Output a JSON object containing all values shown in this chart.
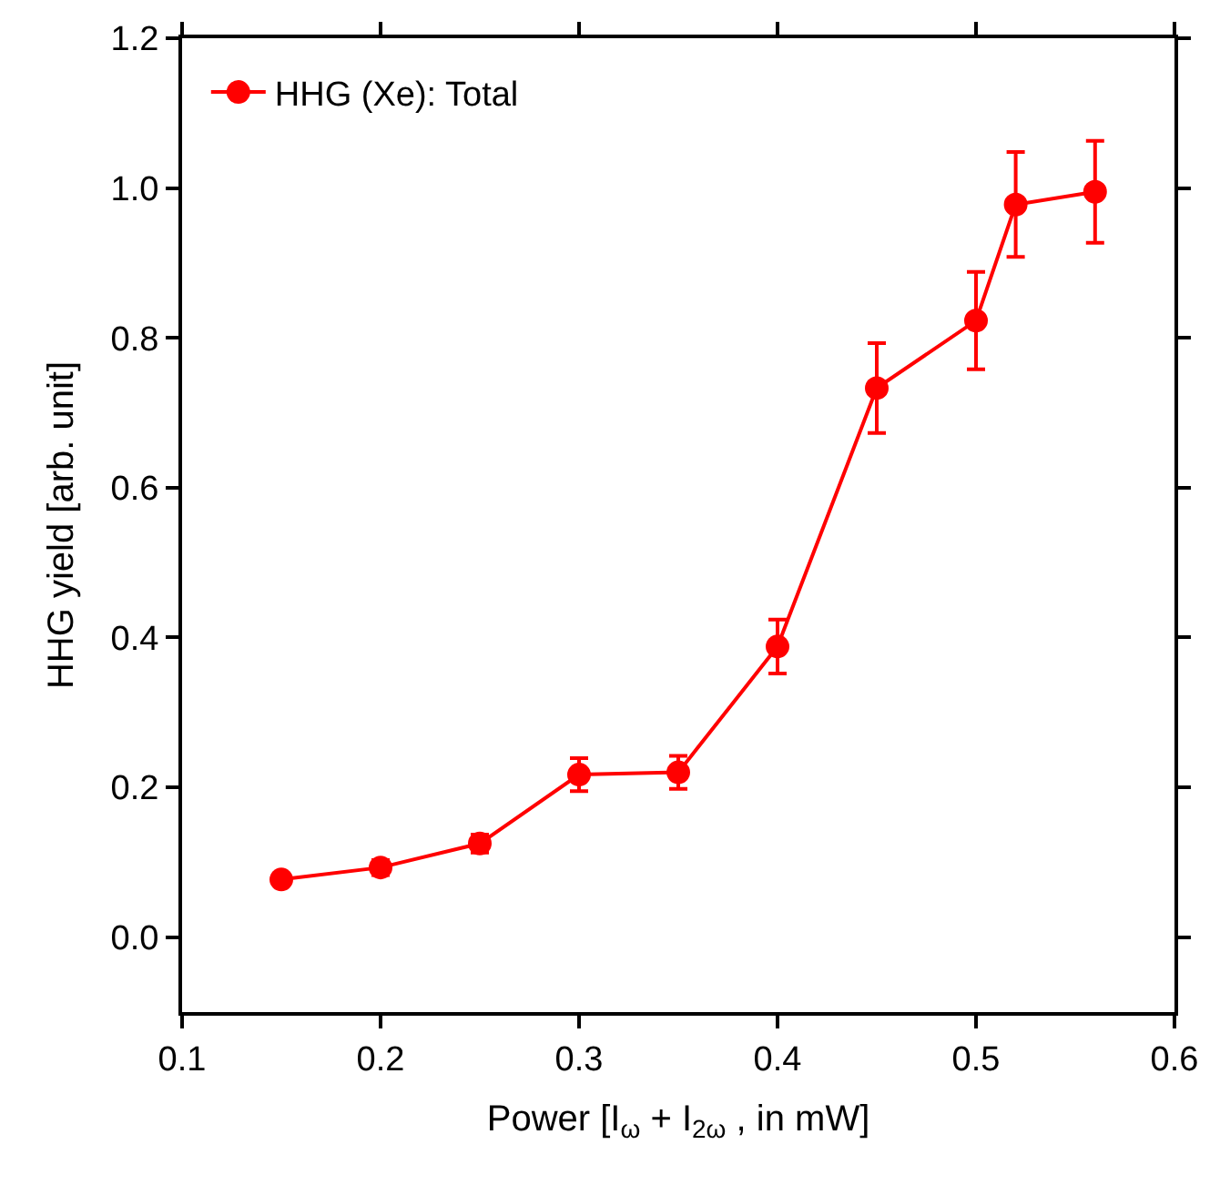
{
  "chart_data": {
    "type": "line",
    "xlabel": "Power [I$_{ω}$ + I$_{2ω}$ , in mW]",
    "ylabel": "HHG yield [arb. unit]",
    "x": [
      0.15,
      0.2,
      0.25,
      0.3,
      0.35,
      0.4,
      0.45,
      0.5,
      0.52,
      0.56
    ],
    "series": [
      {
        "name": "HHG (Xe): Total",
        "color": "#ff0000",
        "values": [
          0.077,
          0.093,
          0.125,
          0.217,
          0.22,
          0.388,
          0.733,
          0.823,
          0.978,
          0.995
        ],
        "errors": [
          0.007,
          0.01,
          0.012,
          0.022,
          0.022,
          0.036,
          0.06,
          0.065,
          0.07,
          0.068
        ]
      }
    ],
    "xlim": [
      0.1,
      0.6
    ],
    "xticks": [
      0.1,
      0.2,
      0.3,
      0.4,
      0.5,
      0.6
    ],
    "ylim": [
      -0.1,
      1.2
    ],
    "yticks": [
      "0.0",
      0.2,
      0.4,
      0.6,
      0.8,
      "1.0",
      1.2
    ],
    "legend": "top left",
    "marker": "circle",
    "line_style": "solid"
  }
}
